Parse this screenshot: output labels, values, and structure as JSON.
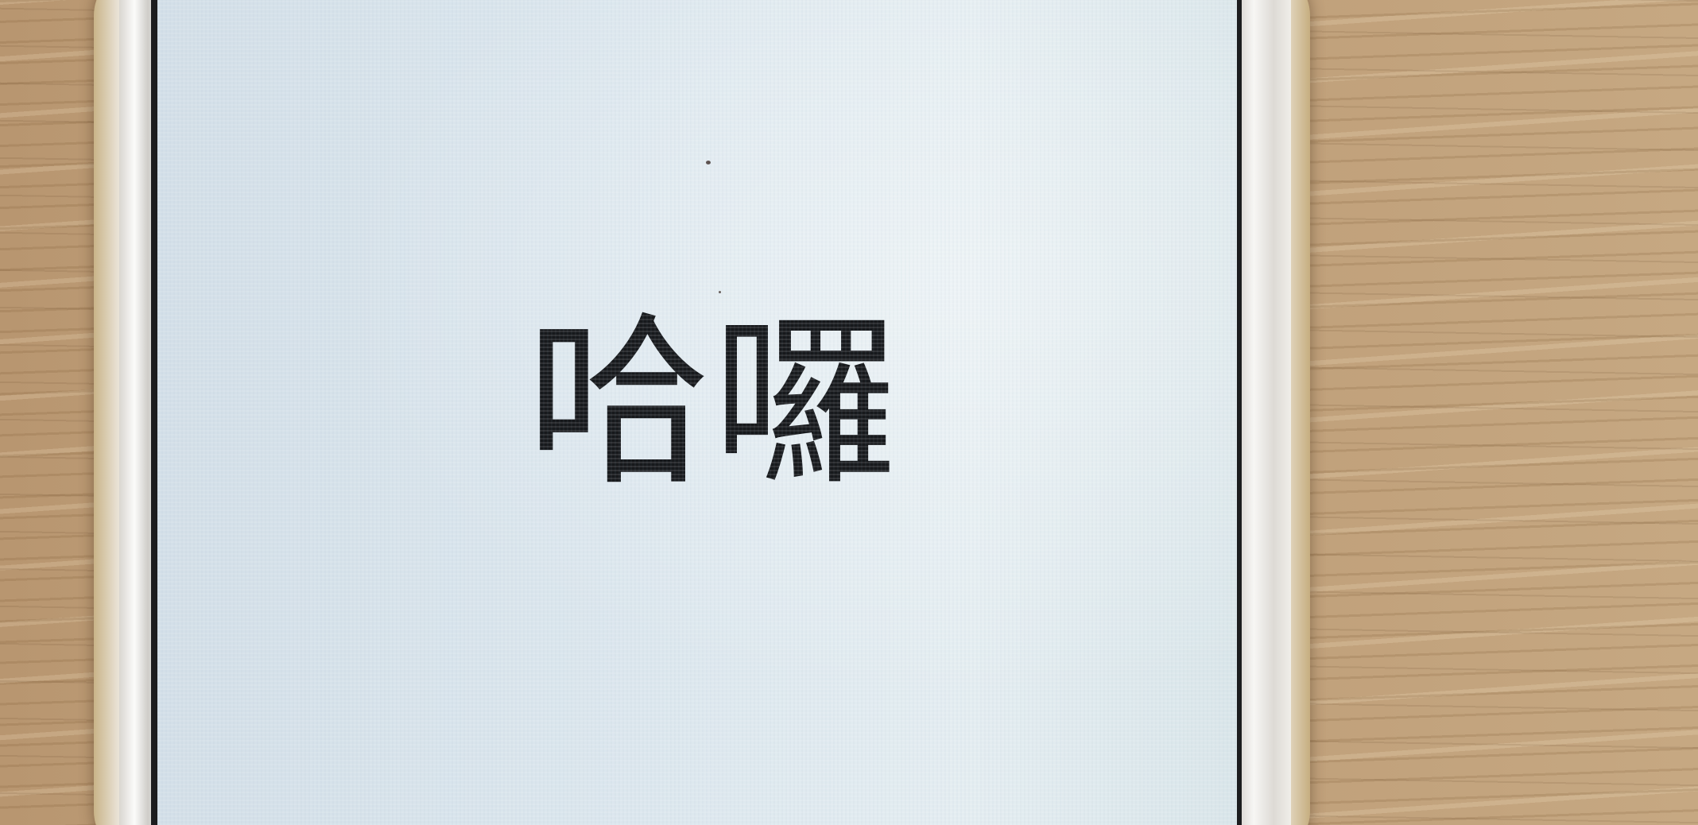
{
  "screen": {
    "text": "哈囉"
  },
  "colors": {
    "screen_background": "#dce7ee",
    "text": "#17191c",
    "wood": "#c2a27c",
    "phone_frame": "#ecebe8"
  }
}
